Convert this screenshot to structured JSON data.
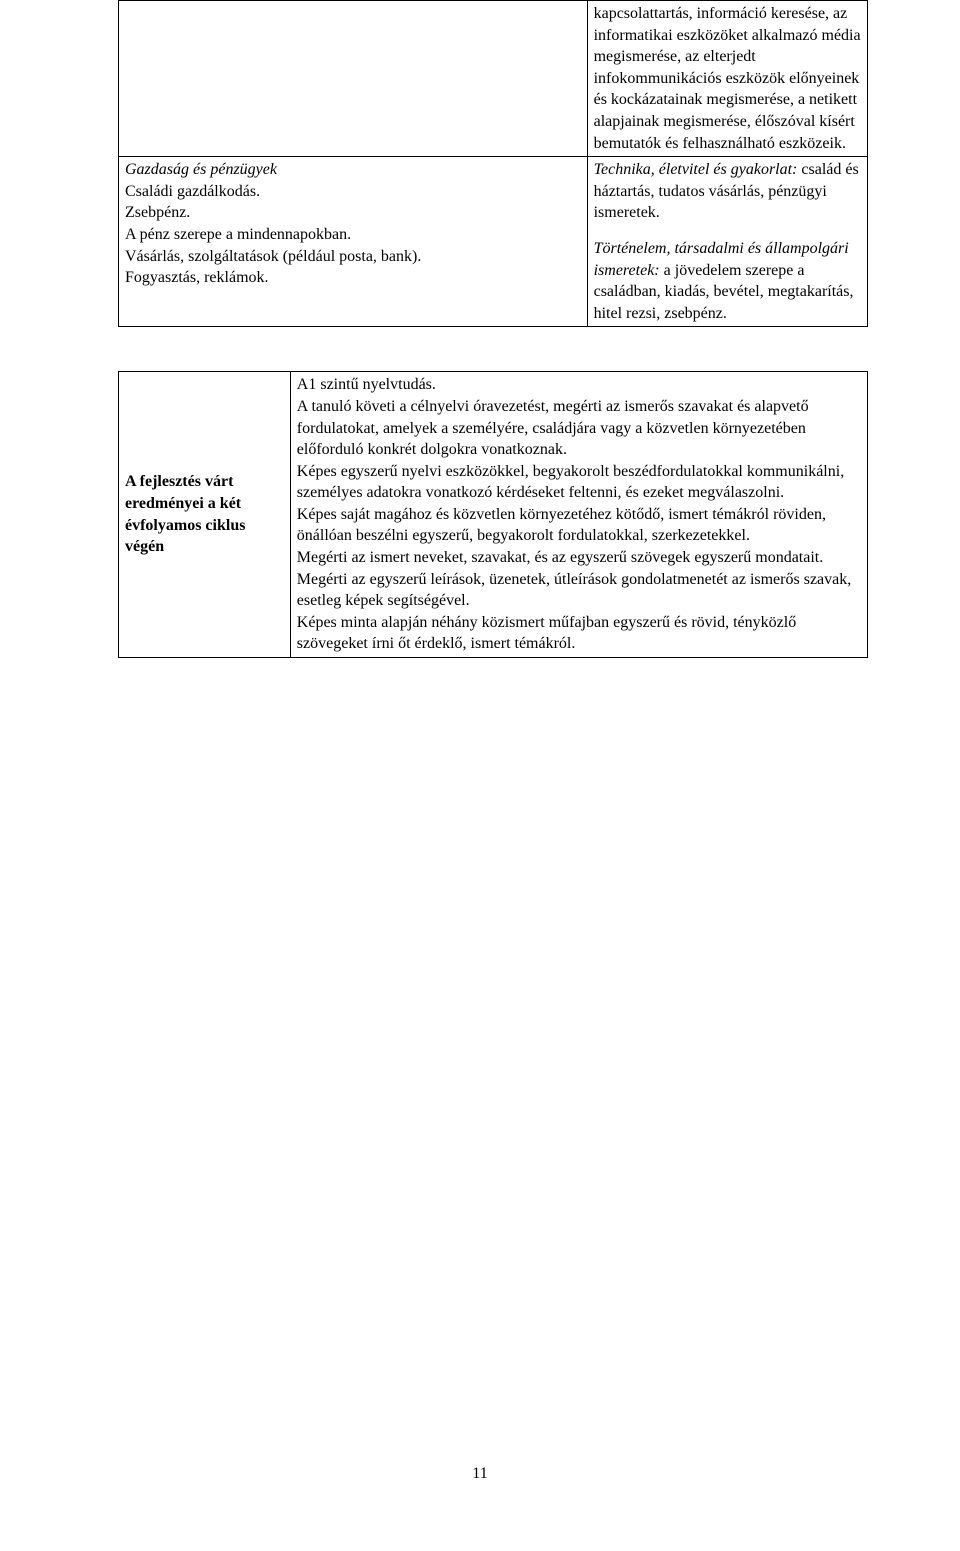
{
  "table1": {
    "left": {
      "l1": "Gazdaság és pénzügyek",
      "l2": "Családi gazdálkodás.",
      "l3": "Zsebpénz.",
      "l4": "A pénz szerepe a mindennapokban.",
      "l5": "Vásárlás, szolgáltatások (például posta, bank).",
      "l6": "Fogyasztás, reklámok."
    },
    "right": {
      "p1": "kapcsolattartás, információ keresése, az informatikai eszközöket alkalmazó média megismerése, az elterjedt infokommunikációs eszközök előnyeinek és kockázatainak megismerése, a netikett alapjainak megismerése, élőszóval kísért bemutatók és felhasználható eszközeik.",
      "p2_ital": "Technika, életvitel és gyakorlat:",
      "p2_rest": " család és háztartás, tudatos vásárlás, pénzügyi ismeretek.",
      "p3_ital": "Történelem, társadalmi és állampolgári ismeretek:",
      "p3_rest": " a jövedelem szerepe a családban, kiadás, bevétel, megtakarítás, hitel rezsi, zsebpénz."
    }
  },
  "table2": {
    "left": "A fejlesztés várt eredményei a két évfolyamos ciklus végén",
    "right": {
      "r1": "A1 szintű nyelvtudás.",
      "r2": "A tanuló követi a célnyelvi óravezetést, megérti az ismerős szavakat és alapvető fordulatokat, amelyek a személyére, családjára vagy a közvetlen környezetében előforduló konkrét dolgokra vonatkoznak.",
      "r3": "Képes egyszerű nyelvi eszközökkel, begyakorolt beszédfordulatokkal kommunikálni, személyes adatokra vonatkozó kérdéseket feltenni, és ezeket megválaszolni.",
      "r4": "Képes saját magához és közvetlen környezetéhez kötődő, ismert témákról röviden, önállóan beszélni egyszerű, begyakorolt fordulatokkal, szerkezetekkel.",
      "r5": "Megérti az ismert neveket, szavakat, és az egyszerű szövegek egyszerű mondatait. Megérti az egyszerű leírások, üzenetek, útleírások gondolatmenetét az ismerős szavak, esetleg képek segítségével.",
      "r6": "Képes minta alapján néhány közismert műfajban egyszerű és rövid, tényközlő szövegeket írni őt érdeklő, ismert témákról."
    }
  },
  "pagenum": "11"
}
